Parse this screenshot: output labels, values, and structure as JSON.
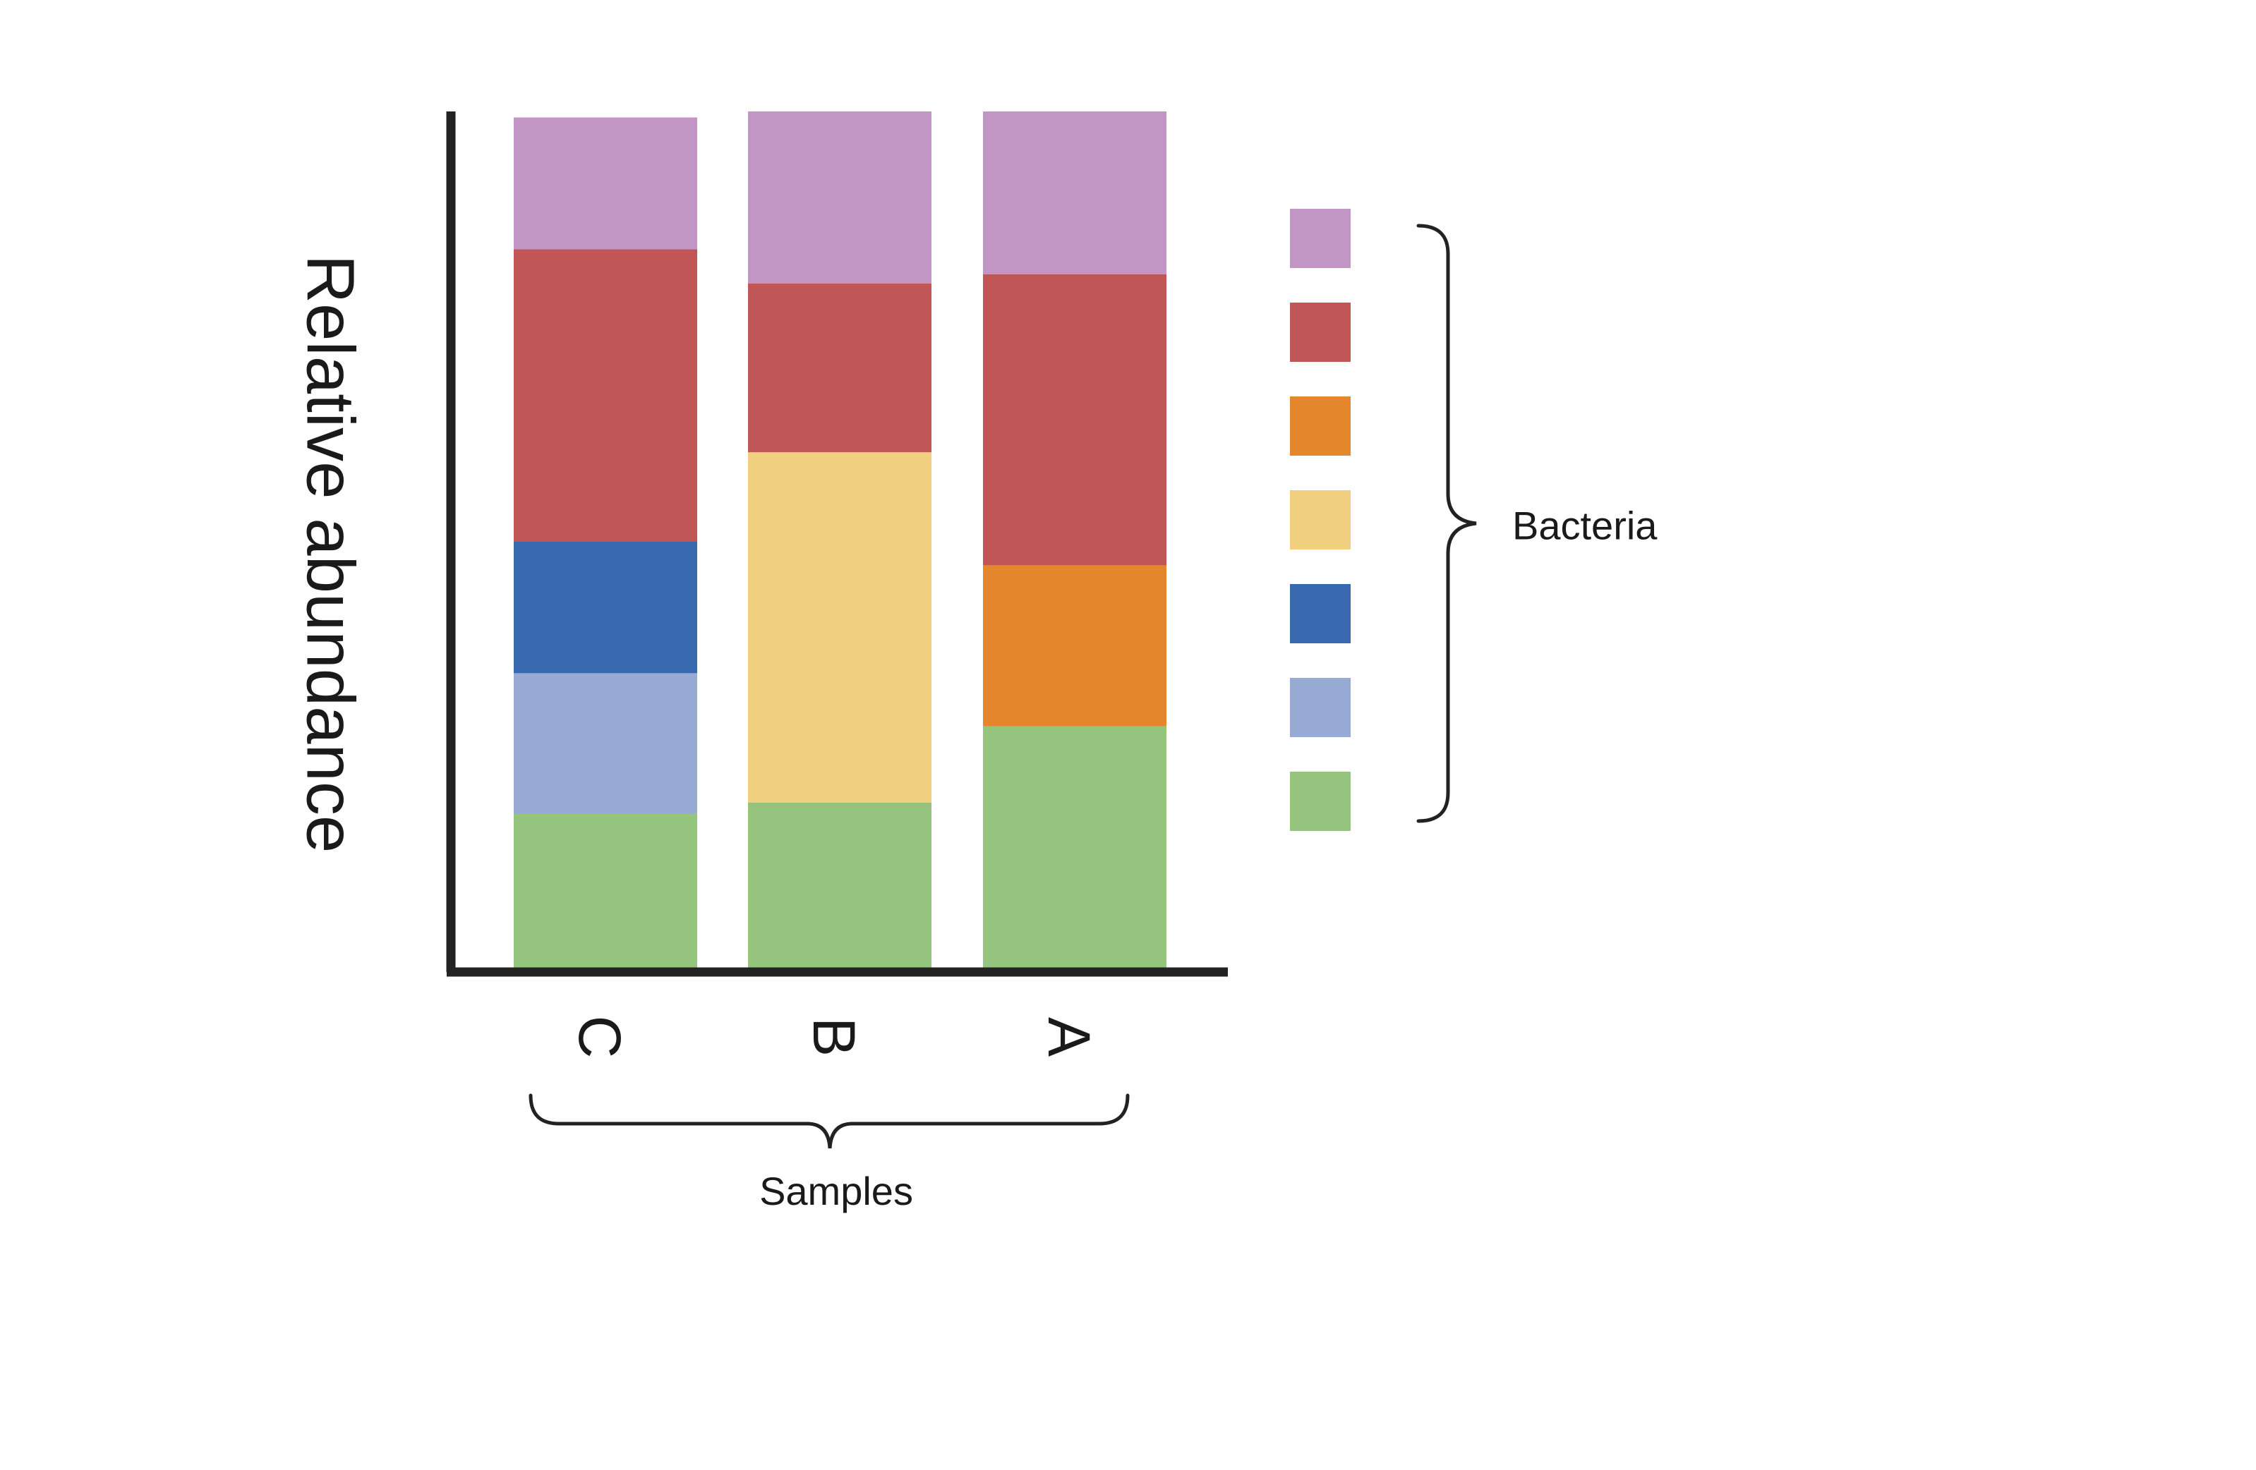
{
  "chart_data": {
    "type": "bar",
    "stacked": true,
    "ylabel": "Relative abundance",
    "xlabel": "Samples",
    "legend_title": "Bacteria",
    "legend_position": "right",
    "grid": false,
    "ylim": [
      0,
      1
    ],
    "categories": [
      "C",
      "B",
      "A"
    ],
    "series": [
      {
        "color": "#95c47e",
        "values": [
          0.18,
          0.193,
          0.282
        ]
      },
      {
        "color": "#96aad4",
        "values": [
          0.164,
          0.0,
          0.0
        ]
      },
      {
        "color": "#3868ae",
        "values": [
          0.154,
          0.0,
          0.0
        ]
      },
      {
        "color": "#f0cf7f",
        "values": [
          0.0,
          0.409,
          0.0
        ]
      },
      {
        "color": "#e4862c",
        "values": [
          0.0,
          0.0,
          0.188
        ]
      },
      {
        "color": "#c05756",
        "values": [
          0.341,
          0.197,
          0.34
        ]
      },
      {
        "color": "#c195c4",
        "values": [
          0.154,
          0.201,
          0.19
        ]
      }
    ]
  }
}
